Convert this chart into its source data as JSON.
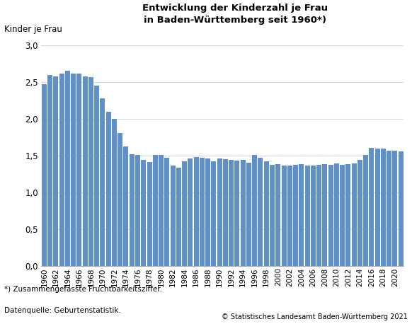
{
  "title": "Entwicklung der Kinderzahl je Frau\nin Baden-Württemberg seit 1960*)",
  "ylabel": "Kinder je Frau",
  "bar_color": "#6090c8",
  "footnote1": "*) Zusammengefasste Fruchtbarkeitsziffer.",
  "footnote2": "Datenquelle: Geburtenstatistik.",
  "copyright": "© Statistisches Landesamt Baden-Württemberg 2021",
  "ylim": [
    0,
    3.0
  ],
  "yticks": [
    0.0,
    0.5,
    1.0,
    1.5,
    2.0,
    2.5,
    3.0
  ],
  "years": [
    1960,
    1961,
    1962,
    1963,
    1964,
    1965,
    1966,
    1967,
    1968,
    1969,
    1970,
    1971,
    1972,
    1973,
    1974,
    1975,
    1976,
    1977,
    1978,
    1979,
    1980,
    1981,
    1982,
    1983,
    1984,
    1985,
    1986,
    1987,
    1988,
    1989,
    1990,
    1991,
    1992,
    1993,
    1994,
    1995,
    1996,
    1997,
    1998,
    1999,
    2000,
    2001,
    2002,
    2003,
    2004,
    2005,
    2006,
    2007,
    2008,
    2009,
    2010,
    2011,
    2012,
    2013,
    2014,
    2015,
    2016,
    2017,
    2018,
    2019,
    2020,
    2021
  ],
  "values": [
    2.47,
    2.6,
    2.58,
    2.62,
    2.65,
    2.62,
    2.62,
    2.58,
    2.57,
    2.45,
    2.28,
    2.1,
    2.0,
    1.81,
    1.62,
    1.52,
    1.51,
    1.44,
    1.41,
    1.51,
    1.51,
    1.47,
    1.36,
    1.33,
    1.42,
    1.46,
    1.48,
    1.47,
    1.46,
    1.42,
    1.46,
    1.45,
    1.44,
    1.43,
    1.44,
    1.4,
    1.51,
    1.47,
    1.42,
    1.37,
    1.38,
    1.36,
    1.36,
    1.37,
    1.38,
    1.36,
    1.36,
    1.37,
    1.38,
    1.37,
    1.39,
    1.37,
    1.38,
    1.39,
    1.44,
    1.51,
    1.6,
    1.59,
    1.59,
    1.57,
    1.57,
    1.56
  ],
  "xtick_years": [
    1960,
    1962,
    1964,
    1966,
    1968,
    1970,
    1972,
    1974,
    1976,
    1978,
    1980,
    1982,
    1984,
    1986,
    1988,
    1990,
    1992,
    1994,
    1996,
    1998,
    2000,
    2002,
    2004,
    2006,
    2008,
    2010,
    2012,
    2014,
    2016,
    2018,
    2020
  ],
  "background_color": "#ffffff",
  "grid_color": "#d0d8e8"
}
